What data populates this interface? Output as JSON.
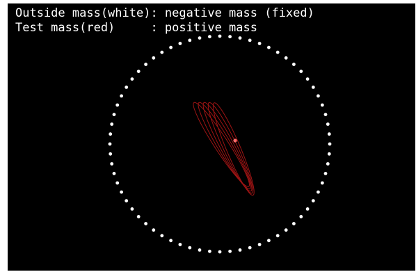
{
  "legend": {
    "line1": "Outside mass(white): negative mass (fixed)",
    "line2": "Test mass(red)     : positive mass"
  },
  "colors": {
    "background": "#000000",
    "outside_mass": "#ffffff",
    "test_mass": "#ff6a6a",
    "trajectory": "#9e1414"
  },
  "simulation": {
    "outside_mass_count": 68
  }
}
